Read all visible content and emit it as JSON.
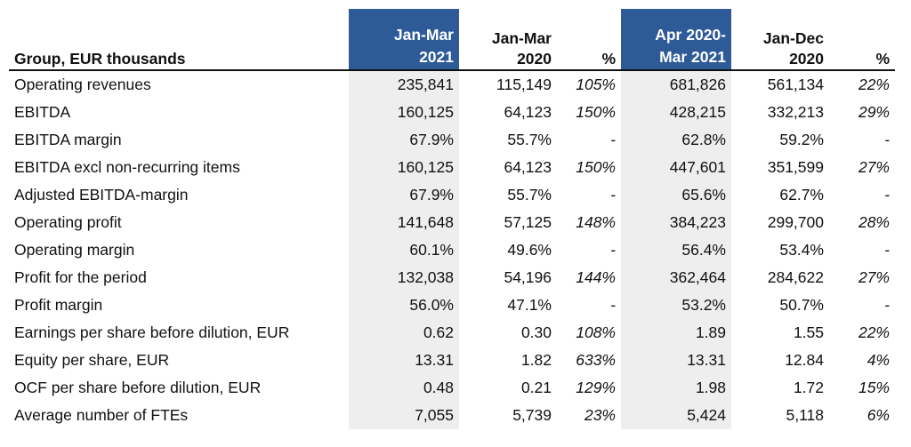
{
  "table": {
    "header": {
      "label": "Group, EUR thousands",
      "col_q1_2021": [
        "Jan-Mar",
        "2021"
      ],
      "col_q1_2020": [
        "Jan-Mar",
        "2020"
      ],
      "col_pct_q": "%",
      "col_ltm": [
        "Apr 2020-",
        "Mar 2021"
      ],
      "col_fy_2020": [
        "Jan-Dec",
        "2020"
      ],
      "col_pct_fy": "%"
    },
    "rows": [
      {
        "label": "Operating revenues",
        "q1_2021": "235,841",
        "q1_2020": "115,149",
        "pct_q": "105%",
        "ltm": "681,826",
        "fy_2020": "561,134",
        "pct_fy": "22%"
      },
      {
        "label": "EBITDA",
        "q1_2021": "160,125",
        "q1_2020": "64,123",
        "pct_q": "150%",
        "ltm": "428,215",
        "fy_2020": "332,213",
        "pct_fy": "29%"
      },
      {
        "label": "EBITDA margin",
        "q1_2021": "67.9%",
        "q1_2020": "55.7%",
        "pct_q": "-",
        "ltm": "62.8%",
        "fy_2020": "59.2%",
        "pct_fy": "-"
      },
      {
        "label": "EBITDA excl non-recurring items",
        "q1_2021": "160,125",
        "q1_2020": "64,123",
        "pct_q": "150%",
        "ltm": "447,601",
        "fy_2020": "351,599",
        "pct_fy": "27%"
      },
      {
        "label": "Adjusted EBITDA-margin",
        "q1_2021": "67.9%",
        "q1_2020": "55.7%",
        "pct_q": "-",
        "ltm": "65.6%",
        "fy_2020": "62.7%",
        "pct_fy": "-"
      },
      {
        "label": "Operating profit",
        "q1_2021": "141,648",
        "q1_2020": "57,125",
        "pct_q": "148%",
        "ltm": "384,223",
        "fy_2020": "299,700",
        "pct_fy": "28%"
      },
      {
        "label": "Operating margin",
        "q1_2021": "60.1%",
        "q1_2020": "49.6%",
        "pct_q": "-",
        "ltm": "56.4%",
        "fy_2020": "53.4%",
        "pct_fy": "-"
      },
      {
        "label": "Profit for the period",
        "q1_2021": "132,038",
        "q1_2020": "54,196",
        "pct_q": "144%",
        "ltm": "362,464",
        "fy_2020": "284,622",
        "pct_fy": "27%"
      },
      {
        "label": "Profit margin",
        "q1_2021": "56.0%",
        "q1_2020": "47.1%",
        "pct_q": "-",
        "ltm": "53.2%",
        "fy_2020": "50.7%",
        "pct_fy": "-"
      },
      {
        "label": "Earnings per share before dilution, EUR",
        "q1_2021": "0.62",
        "q1_2020": "0.30",
        "pct_q": "108%",
        "ltm": "1.89",
        "fy_2020": "1.55",
        "pct_fy": "22%"
      },
      {
        "label": "Equity per share, EUR",
        "q1_2021": "13.31",
        "q1_2020": "1.82",
        "pct_q": "633%",
        "ltm": "13.31",
        "fy_2020": "12.84",
        "pct_fy": "4%"
      },
      {
        "label": "OCF per share before dilution, EUR",
        "q1_2021": "0.48",
        "q1_2020": "0.21",
        "pct_q": "129%",
        "ltm": "1.98",
        "fy_2020": "1.72",
        "pct_fy": "15%"
      },
      {
        "label": "Average number of FTEs",
        "q1_2021": "7,055",
        "q1_2020": "5,739",
        "pct_q": "23%",
        "ltm": "5,424",
        "fy_2020": "5,118",
        "pct_fy": "6%"
      }
    ]
  },
  "colors": {
    "header_highlight": "#2e5b98",
    "column_shade": "#eeeeee",
    "text": "#111111"
  }
}
